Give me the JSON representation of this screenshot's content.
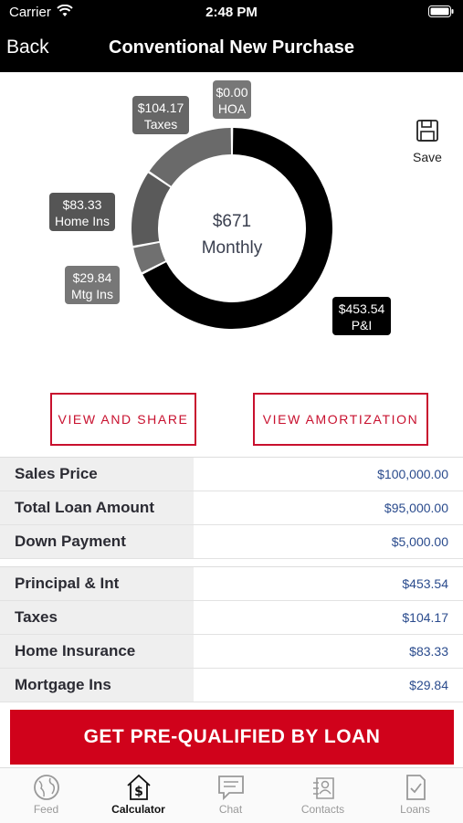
{
  "status": {
    "carrier": "Carrier",
    "time": "2:48 PM"
  },
  "nav": {
    "back_label": "Back",
    "title": "Conventional New Purchase"
  },
  "chart_data": {
    "type": "pie",
    "center_value": "$671",
    "center_label": "Monthly",
    "slices": [
      {
        "key": "pi",
        "value": 453.54,
        "amount": "$453.54",
        "label": "P&I",
        "color": "#000000"
      },
      {
        "key": "mtg",
        "value": 29.84,
        "amount": "$29.84",
        "label": "Mtg Ins",
        "color": "#707070"
      },
      {
        "key": "home",
        "value": 83.33,
        "amount": "$83.33",
        "label": "Home Ins",
        "color": "#5a5a5a"
      },
      {
        "key": "tax",
        "value": 104.17,
        "amount": "$104.17",
        "label": "Taxes",
        "color": "#6a6a6a"
      },
      {
        "key": "hoa",
        "value": 0.0,
        "amount": "$0.00",
        "label": "HOA",
        "color": "#6a6a6a"
      }
    ]
  },
  "save": {
    "label": "Save",
    "icon": "floppy-disk-icon"
  },
  "buttons": {
    "view_share": "VIEW AND SHARE",
    "view_amortization": "VIEW AMORTIZATION"
  },
  "loan_table": [
    {
      "label": "Sales Price",
      "value": "$100,000.00"
    },
    {
      "label": "Total Loan Amount",
      "value": "$95,000.00"
    },
    {
      "label": "Down Payment",
      "value": "$5,000.00"
    }
  ],
  "payment_table": [
    {
      "label": "Principal & Int",
      "value": "$453.54"
    },
    {
      "label": "Taxes",
      "value": "$104.17"
    },
    {
      "label": "Home Insurance",
      "value": "$83.33"
    },
    {
      "label": "Mortgage Ins",
      "value": "$29.84"
    }
  ],
  "cta": {
    "label": "GET PRE-QUALIFIED BY LOAN"
  },
  "tabs": [
    {
      "label": "Feed",
      "icon": "globe-icon"
    },
    {
      "label": "Calculator",
      "icon": "calculator-icon",
      "active": true
    },
    {
      "label": "Chat",
      "icon": "chat-icon"
    },
    {
      "label": "Contacts",
      "icon": "contacts-icon"
    },
    {
      "label": "Loans",
      "icon": "loans-document-icon"
    }
  ],
  "colors": {
    "accent": "#c8102e",
    "cta": "#d0021b",
    "value_text": "#2a4b8d"
  }
}
